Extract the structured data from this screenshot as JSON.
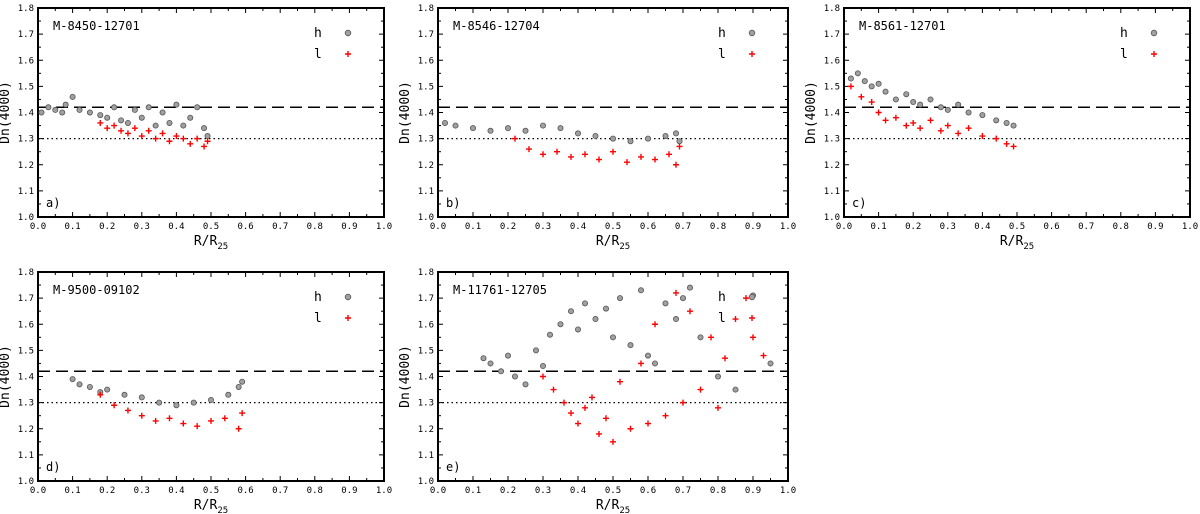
{
  "figure": {
    "legend_items": [
      {
        "label": "h",
        "color": "#7f7f7f",
        "marker": "circle"
      },
      {
        "label": "l",
        "color": "#ff0000",
        "marker": "plus"
      }
    ]
  },
  "chart_data": [
    {
      "type": "scatter",
      "panel": "a",
      "tag": "a)",
      "title": "M-8450-12701",
      "xlabel": "R/R",
      "xlabel_sub": "25",
      "ylabel": "Dn(4000)",
      "xlim": [
        0.0,
        1.0
      ],
      "ylim": [
        1.0,
        1.8
      ],
      "x_ticks": [
        "0.0",
        "0.1",
        "0.2",
        "0.3",
        "0.4",
        "0.5",
        "0.6",
        "0.7",
        "0.8",
        "0.9",
        "1.0"
      ],
      "y_ticks": [
        "1.0",
        "1.1",
        "1.2",
        "1.3",
        "1.4",
        "1.5",
        "1.6",
        "1.7",
        "1.8"
      ],
      "reference_lines": [
        {
          "y": 1.42,
          "style": "dashed"
        },
        {
          "y": 1.3,
          "style": "dotted"
        }
      ],
      "series": [
        {
          "name": "h",
          "color": "#7f7f7f",
          "marker": "circle",
          "x": [
            0.01,
            0.03,
            0.05,
            0.07,
            0.08,
            0.1,
            0.12,
            0.15,
            0.18,
            0.2,
            0.22,
            0.24,
            0.26,
            0.28,
            0.3,
            0.32,
            0.34,
            0.36,
            0.38,
            0.4,
            0.42,
            0.44,
            0.46,
            0.48,
            0.49
          ],
          "y": [
            1.4,
            1.42,
            1.41,
            1.4,
            1.43,
            1.46,
            1.41,
            1.4,
            1.39,
            1.38,
            1.42,
            1.37,
            1.36,
            1.41,
            1.38,
            1.42,
            1.35,
            1.4,
            1.36,
            1.43,
            1.35,
            1.38,
            1.42,
            1.34,
            1.31
          ]
        },
        {
          "name": "l",
          "color": "#ff0000",
          "marker": "plus",
          "x": [
            0.18,
            0.2,
            0.22,
            0.24,
            0.26,
            0.28,
            0.3,
            0.32,
            0.34,
            0.36,
            0.38,
            0.4,
            0.42,
            0.44,
            0.46,
            0.48,
            0.49
          ],
          "y": [
            1.36,
            1.34,
            1.35,
            1.33,
            1.32,
            1.34,
            1.31,
            1.33,
            1.3,
            1.32,
            1.29,
            1.31,
            1.3,
            1.28,
            1.3,
            1.27,
            1.29
          ]
        }
      ]
    },
    {
      "type": "scatter",
      "panel": "b",
      "tag": "b)",
      "title": "M-8546-12704",
      "xlabel": "R/R",
      "xlabel_sub": "25",
      "ylabel": "Dn(4000)",
      "xlim": [
        0.0,
        1.0
      ],
      "ylim": [
        1.0,
        1.8
      ],
      "x_ticks": [
        "0.0",
        "0.1",
        "0.2",
        "0.3",
        "0.4",
        "0.5",
        "0.6",
        "0.7",
        "0.8",
        "0.9",
        "1.0"
      ],
      "y_ticks": [
        "1.0",
        "1.1",
        "1.2",
        "1.3",
        "1.4",
        "1.5",
        "1.6",
        "1.7",
        "1.8"
      ],
      "reference_lines": [
        {
          "y": 1.42,
          "style": "dashed"
        },
        {
          "y": 1.3,
          "style": "dotted"
        }
      ],
      "series": [
        {
          "name": "h",
          "color": "#7f7f7f",
          "marker": "circle",
          "x": [
            0.02,
            0.05,
            0.1,
            0.15,
            0.2,
            0.25,
            0.3,
            0.35,
            0.4,
            0.45,
            0.5,
            0.55,
            0.6,
            0.65,
            0.68,
            0.69
          ],
          "y": [
            1.36,
            1.35,
            1.34,
            1.33,
            1.34,
            1.33,
            1.35,
            1.34,
            1.32,
            1.31,
            1.3,
            1.29,
            1.3,
            1.31,
            1.32,
            1.29
          ]
        },
        {
          "name": "l",
          "color": "#ff0000",
          "marker": "plus",
          "x": [
            0.22,
            0.26,
            0.3,
            0.34,
            0.38,
            0.42,
            0.46,
            0.5,
            0.54,
            0.58,
            0.62,
            0.66,
            0.68,
            0.69
          ],
          "y": [
            1.3,
            1.26,
            1.24,
            1.25,
            1.23,
            1.24,
            1.22,
            1.25,
            1.21,
            1.23,
            1.22,
            1.24,
            1.2,
            1.27
          ]
        }
      ]
    },
    {
      "type": "scatter",
      "panel": "c",
      "tag": "c)",
      "title": "M-8561-12701",
      "xlabel": "R/R",
      "xlabel_sub": "25",
      "ylabel": "Dn(4000)",
      "xlim": [
        0.0,
        1.0
      ],
      "ylim": [
        1.0,
        1.8
      ],
      "x_ticks": [
        "0.0",
        "0.1",
        "0.2",
        "0.3",
        "0.4",
        "0.5",
        "0.6",
        "0.7",
        "0.8",
        "0.9",
        "1.0"
      ],
      "y_ticks": [
        "1.0",
        "1.1",
        "1.2",
        "1.3",
        "1.4",
        "1.5",
        "1.6",
        "1.7",
        "1.8"
      ],
      "reference_lines": [
        {
          "y": 1.42,
          "style": "dashed"
        },
        {
          "y": 1.3,
          "style": "dotted"
        }
      ],
      "series": [
        {
          "name": "h",
          "color": "#7f7f7f",
          "marker": "circle",
          "x": [
            0.02,
            0.04,
            0.06,
            0.08,
            0.1,
            0.12,
            0.15,
            0.18,
            0.2,
            0.22,
            0.25,
            0.28,
            0.3,
            0.33,
            0.36,
            0.4,
            0.44,
            0.47,
            0.49
          ],
          "y": [
            1.53,
            1.55,
            1.52,
            1.5,
            1.51,
            1.48,
            1.45,
            1.47,
            1.44,
            1.43,
            1.45,
            1.42,
            1.41,
            1.43,
            1.4,
            1.39,
            1.37,
            1.36,
            1.35
          ]
        },
        {
          "name": "l",
          "color": "#ff0000",
          "marker": "plus",
          "x": [
            0.02,
            0.05,
            0.08,
            0.1,
            0.12,
            0.15,
            0.18,
            0.2,
            0.22,
            0.25,
            0.28,
            0.3,
            0.33,
            0.36,
            0.4,
            0.44,
            0.47,
            0.49
          ],
          "y": [
            1.5,
            1.46,
            1.44,
            1.4,
            1.37,
            1.38,
            1.35,
            1.36,
            1.34,
            1.37,
            1.33,
            1.35,
            1.32,
            1.34,
            1.31,
            1.3,
            1.28,
            1.27
          ]
        }
      ]
    },
    {
      "type": "scatter",
      "panel": "d",
      "tag": "d)",
      "title": "M-9500-09102",
      "xlabel": "R/R",
      "xlabel_sub": "25",
      "ylabel": "Dn(4000)",
      "xlim": [
        0.0,
        1.0
      ],
      "ylim": [
        1.0,
        1.8
      ],
      "x_ticks": [
        "0.0",
        "0.1",
        "0.2",
        "0.3",
        "0.4",
        "0.5",
        "0.6",
        "0.7",
        "0.8",
        "0.9",
        "1.0"
      ],
      "y_ticks": [
        "1.0",
        "1.1",
        "1.2",
        "1.3",
        "1.4",
        "1.5",
        "1.6",
        "1.7",
        "1.8"
      ],
      "reference_lines": [
        {
          "y": 1.42,
          "style": "dashed"
        },
        {
          "y": 1.3,
          "style": "dotted"
        }
      ],
      "series": [
        {
          "name": "h",
          "color": "#7f7f7f",
          "marker": "circle",
          "x": [
            0.1,
            0.12,
            0.15,
            0.18,
            0.2,
            0.25,
            0.3,
            0.35,
            0.4,
            0.45,
            0.5,
            0.55,
            0.58,
            0.59
          ],
          "y": [
            1.39,
            1.37,
            1.36,
            1.34,
            1.35,
            1.33,
            1.32,
            1.3,
            1.29,
            1.3,
            1.31,
            1.33,
            1.36,
            1.38
          ]
        },
        {
          "name": "l",
          "color": "#ff0000",
          "marker": "plus",
          "x": [
            0.18,
            0.22,
            0.26,
            0.3,
            0.34,
            0.38,
            0.42,
            0.46,
            0.5,
            0.54,
            0.58,
            0.59
          ],
          "y": [
            1.33,
            1.29,
            1.27,
            1.25,
            1.23,
            1.24,
            1.22,
            1.21,
            1.23,
            1.24,
            1.2,
            1.26
          ]
        }
      ]
    },
    {
      "type": "scatter",
      "panel": "e",
      "tag": "e)",
      "title": "M-11761-12705",
      "xlabel": "R/R",
      "xlabel_sub": "25",
      "ylabel": "Dn(4000)",
      "xlim": [
        0.0,
        1.0
      ],
      "ylim": [
        1.0,
        1.8
      ],
      "x_ticks": [
        "0.0",
        "0.1",
        "0.2",
        "0.3",
        "0.4",
        "0.5",
        "0.6",
        "0.7",
        "0.8",
        "0.9",
        "1.0"
      ],
      "y_ticks": [
        "1.0",
        "1.1",
        "1.2",
        "1.3",
        "1.4",
        "1.5",
        "1.6",
        "1.7",
        "1.8"
      ],
      "reference_lines": [
        {
          "y": 1.42,
          "style": "dashed"
        },
        {
          "y": 1.3,
          "style": "dotted"
        }
      ],
      "series": [
        {
          "name": "h",
          "color": "#7f7f7f",
          "marker": "circle",
          "x": [
            0.13,
            0.15,
            0.18,
            0.2,
            0.22,
            0.25,
            0.28,
            0.3,
            0.32,
            0.35,
            0.38,
            0.4,
            0.42,
            0.45,
            0.48,
            0.5,
            0.52,
            0.55,
            0.58,
            0.6,
            0.62,
            0.65,
            0.68,
            0.7,
            0.72,
            0.75,
            0.8,
            0.85,
            0.9,
            0.95
          ],
          "y": [
            1.47,
            1.45,
            1.42,
            1.48,
            1.4,
            1.37,
            1.5,
            1.44,
            1.56,
            1.6,
            1.65,
            1.58,
            1.68,
            1.62,
            1.66,
            1.55,
            1.7,
            1.52,
            1.73,
            1.48,
            1.45,
            1.68,
            1.62,
            1.7,
            1.74,
            1.55,
            1.4,
            1.35,
            1.71,
            1.45
          ]
        },
        {
          "name": "l",
          "color": "#ff0000",
          "marker": "plus",
          "x": [
            0.3,
            0.33,
            0.36,
            0.38,
            0.4,
            0.42,
            0.44,
            0.46,
            0.48,
            0.5,
            0.52,
            0.55,
            0.58,
            0.6,
            0.62,
            0.65,
            0.68,
            0.7,
            0.72,
            0.75,
            0.78,
            0.8,
            0.82,
            0.85,
            0.88,
            0.9,
            0.93
          ],
          "y": [
            1.4,
            1.35,
            1.3,
            1.26,
            1.22,
            1.28,
            1.32,
            1.18,
            1.24,
            1.15,
            1.38,
            1.2,
            1.45,
            1.22,
            1.6,
            1.25,
            1.72,
            1.3,
            1.65,
            1.35,
            1.55,
            1.28,
            1.47,
            1.62,
            1.7,
            1.55,
            1.48
          ]
        }
      ]
    }
  ]
}
